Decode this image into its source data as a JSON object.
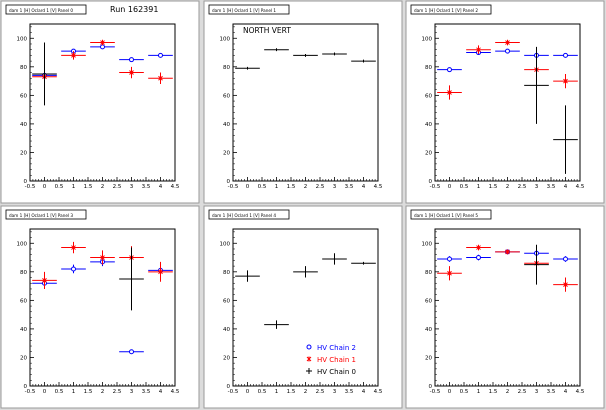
{
  "run_label": "Run 162391",
  "legend": {
    "entries": [
      {
        "label": "HV Chain 2",
        "color": "#0000ff",
        "marker": "open-circle"
      },
      {
        "label": "HV Chain 1",
        "color": "#ff0000",
        "marker": "star"
      },
      {
        "label": "HV Chain 0",
        "color": "#000000",
        "marker": "plus"
      }
    ]
  },
  "chart_data": [
    {
      "type": "scatter",
      "panel_title": "dam 1 [H] Oclard 1 [V] Panel 0",
      "annotation": "Run 162391",
      "xlim": [
        -0.5,
        4.5
      ],
      "ylim": [
        0,
        110
      ],
      "xticks": [
        "-0.5",
        "0",
        "0.5",
        "1",
        "1.5",
        "2",
        "2.5",
        "3",
        "3.5",
        "4",
        "4.5"
      ],
      "yticks": [
        "0",
        "20",
        "40",
        "60",
        "80",
        "100"
      ],
      "series": [
        {
          "name": "HV Chain 2",
          "color": "#0000ff",
          "marker": "open-circle",
          "points": [
            {
              "x": 0,
              "y": 74,
              "ey": 1
            },
            {
              "x": 1,
              "y": 91,
              "ey": 1
            },
            {
              "x": 2,
              "y": 94,
              "ey": 1
            },
            {
              "x": 3,
              "y": 85,
              "ey": 1
            },
            {
              "x": 4,
              "y": 88,
              "ey": 1
            }
          ]
        },
        {
          "name": "HV Chain 1",
          "color": "#ff0000",
          "marker": "star",
          "points": [
            {
              "x": 0,
              "y": 73,
              "ey": 4
            },
            {
              "x": 1,
              "y": 88,
              "ey": 3
            },
            {
              "x": 2,
              "y": 97,
              "ey": 2
            },
            {
              "x": 3,
              "y": 76,
              "ey": 4
            },
            {
              "x": 4,
              "y": 72,
              "ey": 4
            }
          ]
        },
        {
          "name": "HV Chain 0",
          "color": "#000000",
          "marker": "plus",
          "points": [
            {
              "x": 0,
              "y": 75,
              "ey": 22
            }
          ]
        }
      ]
    },
    {
      "type": "scatter",
      "panel_title": "dam 1 [H] Oclard 1 [V] Panel 1",
      "annotation": "NORTH VERT",
      "xlim": [
        -0.5,
        4.5
      ],
      "ylim": [
        0,
        110
      ],
      "xticks": [
        "-0.5",
        "0",
        "0.5",
        "1",
        "1.5",
        "2",
        "2.5",
        "3",
        "3.5",
        "4",
        "4.5"
      ],
      "yticks": [
        "0",
        "20",
        "40",
        "60",
        "80",
        "100"
      ],
      "series": [
        {
          "name": "HV Chain 0",
          "color": "#000000",
          "marker": "plus",
          "points": [
            {
              "x": 0,
              "y": 79,
              "ey": 1
            },
            {
              "x": 1,
              "y": 92,
              "ey": 1
            },
            {
              "x": 2,
              "y": 88,
              "ey": 1
            },
            {
              "x": 3,
              "y": 89,
              "ey": 1
            },
            {
              "x": 4,
              "y": 84,
              "ey": 1
            }
          ]
        }
      ]
    },
    {
      "type": "scatter",
      "panel_title": "dam 1 [H] Oclard 1 [V] Panel 2",
      "annotation": "",
      "xlim": [
        -0.5,
        4.5
      ],
      "ylim": [
        0,
        110
      ],
      "xticks": [
        "-0.5",
        "0",
        "0.5",
        "1",
        "1.5",
        "2",
        "2.5",
        "3",
        "3.5",
        "4",
        "4.5"
      ],
      "yticks": [
        "0",
        "20",
        "40",
        "60",
        "80",
        "100"
      ],
      "series": [
        {
          "name": "HV Chain 2",
          "color": "#0000ff",
          "marker": "open-circle",
          "points": [
            {
              "x": 0,
              "y": 78,
              "ey": 1
            },
            {
              "x": 1,
              "y": 90,
              "ey": 1
            },
            {
              "x": 2,
              "y": 91,
              "ey": 1
            },
            {
              "x": 3,
              "y": 88,
              "ey": 1
            },
            {
              "x": 4,
              "y": 88,
              "ey": 1
            }
          ]
        },
        {
          "name": "HV Chain 1",
          "color": "#ff0000",
          "marker": "star",
          "points": [
            {
              "x": 0,
              "y": 62,
              "ey": 5
            },
            {
              "x": 1,
              "y": 92,
              "ey": 3
            },
            {
              "x": 2,
              "y": 97,
              "ey": 2
            },
            {
              "x": 3,
              "y": 78,
              "ey": 7
            },
            {
              "x": 4,
              "y": 70,
              "ey": 5
            }
          ]
        },
        {
          "name": "HV Chain 0",
          "color": "#000000",
          "marker": "plus",
          "points": [
            {
              "x": 3,
              "y": 67,
              "ey": 27
            },
            {
              "x": 4,
              "y": 29,
              "ey": 24
            }
          ]
        }
      ]
    },
    {
      "type": "scatter",
      "panel_title": "dam 1 [H] Oclard 1 [V] Panel 3",
      "annotation": "",
      "xlim": [
        -0.5,
        4.5
      ],
      "ylim": [
        0,
        110
      ],
      "xticks": [
        "-0.5",
        "0",
        "0.5",
        "1",
        "1.5",
        "2",
        "2.5",
        "3",
        "3.5",
        "4",
        "4.5"
      ],
      "yticks": [
        "0",
        "20",
        "40",
        "60",
        "80",
        "100"
      ],
      "series": [
        {
          "name": "HV Chain 2",
          "color": "#0000ff",
          "marker": "open-circle",
          "points": [
            {
              "x": 0,
              "y": 72,
              "ey": 4
            },
            {
              "x": 1,
              "y": 82,
              "ey": 3
            },
            {
              "x": 2,
              "y": 87,
              "ey": 3
            },
            {
              "x": 3,
              "y": 24,
              "ey": 1
            },
            {
              "x": 4,
              "y": 81,
              "ey": 4
            }
          ]
        },
        {
          "name": "HV Chain 1",
          "color": "#ff0000",
          "marker": "star",
          "points": [
            {
              "x": 0,
              "y": 74,
              "ey": 6
            },
            {
              "x": 1,
              "y": 97,
              "ey": 4
            },
            {
              "x": 2,
              "y": 90,
              "ey": 5
            },
            {
              "x": 3,
              "y": 90,
              "ey": 8
            },
            {
              "x": 4,
              "y": 80,
              "ey": 7
            }
          ]
        },
        {
          "name": "HV Chain 0",
          "color": "#000000",
          "marker": "plus",
          "points": [
            {
              "x": 3,
              "y": 75,
              "ey": 22
            }
          ]
        }
      ]
    },
    {
      "type": "scatter",
      "panel_title": "dam 1 [H] Oclard 1 [V] Panel 4",
      "annotation": "",
      "xlim": [
        -0.5,
        4.5
      ],
      "ylim": [
        0,
        110
      ],
      "xticks": [
        "-0.5",
        "0",
        "0.5",
        "1",
        "1.5",
        "2",
        "2.5",
        "3",
        "3.5",
        "4",
        "4.5"
      ],
      "yticks": [
        "0",
        "20",
        "40",
        "60",
        "80",
        "100"
      ],
      "series": [
        {
          "name": "HV Chain 0",
          "color": "#000000",
          "marker": "plus",
          "points": [
            {
              "x": 0,
              "y": 77,
              "ey": 4
            },
            {
              "x": 1,
              "y": 43,
              "ey": 3
            },
            {
              "x": 2,
              "y": 80,
              "ey": 4
            },
            {
              "x": 3,
              "y": 89,
              "ey": 4
            },
            {
              "x": 4,
              "y": 86,
              "ey": 1
            }
          ]
        }
      ],
      "has_legend": true
    },
    {
      "type": "scatter",
      "panel_title": "dam 1 [H] Oclard 1 [V] Panel 5",
      "annotation": "",
      "xlim": [
        -0.5,
        4.5
      ],
      "ylim": [
        0,
        110
      ],
      "xticks": [
        "-0.5",
        "0",
        "0.5",
        "1",
        "1.5",
        "2",
        "2.5",
        "3",
        "3.5",
        "4",
        "4.5"
      ],
      "yticks": [
        "0",
        "20",
        "40",
        "60",
        "80",
        "100"
      ],
      "series": [
        {
          "name": "HV Chain 2",
          "color": "#0000ff",
          "marker": "open-circle",
          "points": [
            {
              "x": 0,
              "y": 89,
              "ey": 2
            },
            {
              "x": 1,
              "y": 90,
              "ey": 2
            },
            {
              "x": 2,
              "y": 94,
              "ey": 1
            },
            {
              "x": 3,
              "y": 93,
              "ey": 3
            },
            {
              "x": 4,
              "y": 89,
              "ey": 2
            }
          ]
        },
        {
          "name": "HV Chain 1",
          "color": "#ff0000",
          "marker": "star",
          "points": [
            {
              "x": 0,
              "y": 79,
              "ey": 5
            },
            {
              "x": 1,
              "y": 97,
              "ey": 2
            },
            {
              "x": 2,
              "y": 94,
              "ey": 1
            },
            {
              "x": 3,
              "y": 86,
              "ey": 3
            },
            {
              "x": 4,
              "y": 71,
              "ey": 5
            }
          ]
        },
        {
          "name": "HV Chain 0",
          "color": "#000000",
          "marker": "plus",
          "points": [
            {
              "x": 3,
              "y": 85,
              "ey": 14
            }
          ]
        }
      ]
    }
  ]
}
